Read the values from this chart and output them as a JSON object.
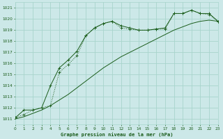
{
  "title": "Graphe pression niveau de la mer (hPa)",
  "bg_color": "#cce8e8",
  "grid_color": "#a8d4cc",
  "line_color": "#1a5c1a",
  "xlim": [
    0,
    23
  ],
  "ylim": [
    1010.5,
    1021.5
  ],
  "yticks": [
    1011,
    1012,
    1013,
    1014,
    1015,
    1016,
    1017,
    1018,
    1019,
    1020,
    1021
  ],
  "xticks": [
    0,
    1,
    2,
    3,
    4,
    5,
    6,
    7,
    8,
    9,
    10,
    11,
    12,
    13,
    14,
    15,
    16,
    17,
    18,
    19,
    20,
    21,
    22,
    23
  ],
  "series1_x": [
    0,
    1,
    2,
    3,
    4,
    5,
    6,
    7,
    8,
    9,
    10,
    11,
    12,
    13,
    14,
    15,
    16,
    17,
    18,
    19,
    20,
    21,
    22,
    23
  ],
  "series1_y": [
    1011.1,
    1011.4,
    1011.8,
    1012.0,
    1012.2,
    1015.2,
    1015.9,
    1016.7,
    1018.5,
    1019.2,
    1019.6,
    1019.8,
    1019.2,
    1019.1,
    1019.0,
    1019.0,
    1019.1,
    1019.1,
    1020.5,
    1020.5,
    1020.8,
    1020.5,
    1020.4,
    1019.8
  ],
  "series2_x": [
    0,
    1,
    2,
    3,
    4,
    5,
    6,
    7,
    8,
    9,
    10,
    11,
    12,
    13,
    14,
    15,
    16,
    17,
    18,
    19,
    20,
    21,
    22,
    23
  ],
  "series2_y": [
    1011.1,
    1011.8,
    1011.8,
    1012.0,
    1014.0,
    1015.6,
    1016.3,
    1017.1,
    1018.5,
    1019.2,
    1019.6,
    1019.8,
    1019.4,
    1019.2,
    1019.0,
    1019.0,
    1019.1,
    1019.2,
    1020.5,
    1020.5,
    1020.8,
    1020.5,
    1020.5,
    1019.8
  ],
  "series3_x": [
    0,
    1,
    2,
    3,
    4,
    5,
    6,
    7,
    8,
    9,
    10,
    11,
    12,
    13,
    14,
    15,
    16,
    17,
    18,
    19,
    20,
    21,
    22,
    23
  ],
  "series3_y": [
    1011.0,
    1011.2,
    1011.5,
    1011.8,
    1012.2,
    1012.7,
    1013.2,
    1013.8,
    1014.4,
    1015.0,
    1015.6,
    1016.1,
    1016.6,
    1017.0,
    1017.4,
    1017.8,
    1018.2,
    1018.6,
    1019.0,
    1019.3,
    1019.6,
    1019.8,
    1019.9,
    1019.8
  ]
}
